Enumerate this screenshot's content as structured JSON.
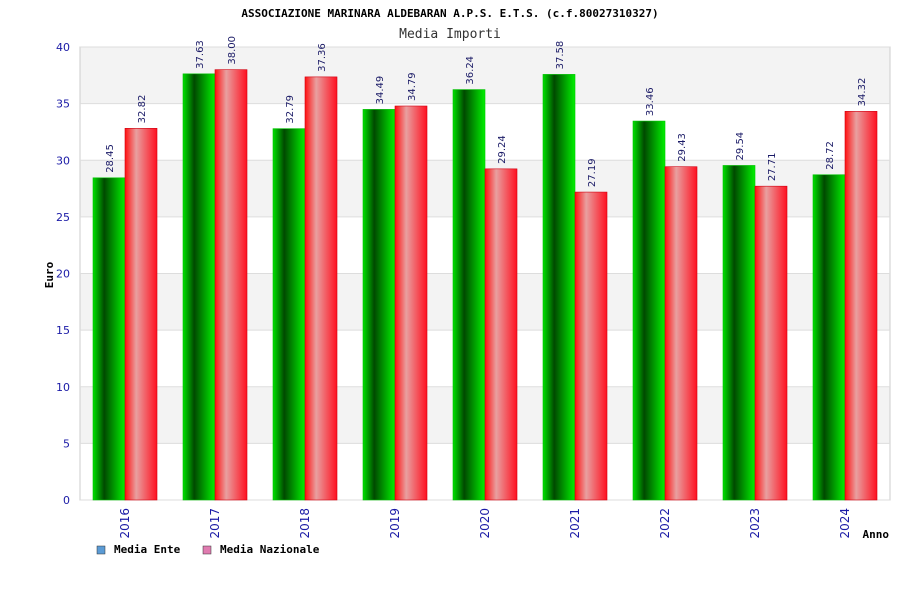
{
  "chart_data": {
    "type": "bar",
    "title": "ASSOCIAZIONE MARINARA ALDEBARAN A.P.S. E.T.S. (c.f.80027310327)",
    "subtitle": "Media Importi",
    "xlabel": "Anno",
    "ylabel": "Euro",
    "ylim": [
      0,
      40
    ],
    "yticks": [
      "0",
      "5",
      "10",
      "15",
      "20",
      "25",
      "30",
      "35",
      "40"
    ],
    "grid": true,
    "legend_position": "bottom-left",
    "categories": [
      "2016",
      "2017",
      "2018",
      "2019",
      "2020",
      "2021",
      "2022",
      "2023",
      "2024"
    ],
    "series": [
      {
        "name": "Media Ente",
        "values": [
          28.45,
          37.63,
          32.79,
          34.49,
          36.24,
          37.58,
          33.46,
          29.54,
          28.72
        ],
        "labels": [
          "28.45",
          "37.63",
          "32.79",
          "34.49",
          "36.24",
          "37.58",
          "33.46",
          "29.54",
          "28.72"
        ],
        "color": "#00b000",
        "legend_color": "#5b9bd5"
      },
      {
        "name": "Media Nazionale",
        "values": [
          32.82,
          38.0,
          37.36,
          34.79,
          29.24,
          27.19,
          29.43,
          27.71,
          34.32
        ],
        "labels": [
          "32.82",
          "38.00",
          "37.36",
          "34.79",
          "29.24",
          "27.19",
          "29.43",
          "27.71",
          "34.32"
        ],
        "color": "#e8101a",
        "legend_color": "#e07bb0"
      }
    ]
  }
}
